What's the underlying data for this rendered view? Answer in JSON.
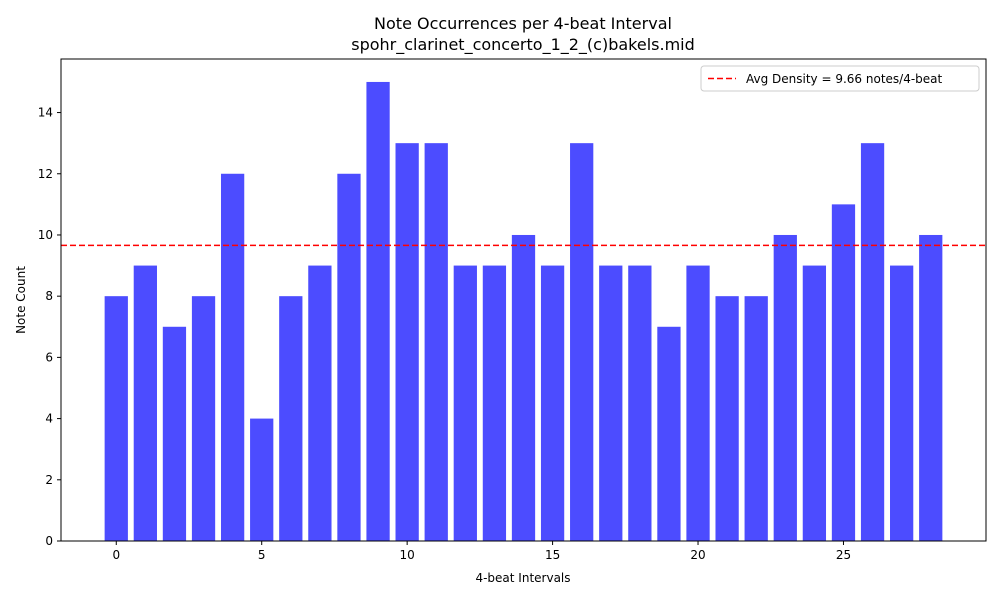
{
  "chart_data": {
    "type": "bar",
    "title": "Note Occurrences per 4-beat Interval",
    "subtitle": "spohr_clarinet_concerto_1_2_(c)bakels.mid",
    "xlabel": "4-beat Intervals",
    "ylabel": "Note Count",
    "x": [
      0,
      1,
      2,
      3,
      4,
      5,
      6,
      7,
      8,
      9,
      10,
      11,
      12,
      13,
      14,
      15,
      16,
      17,
      18,
      19,
      20,
      21,
      22,
      23,
      24,
      25,
      26,
      27,
      28
    ],
    "values": [
      8,
      9,
      7,
      8,
      12,
      4,
      8,
      9,
      12,
      15,
      13,
      13,
      9,
      9,
      10,
      9,
      13,
      9,
      9,
      7,
      9,
      8,
      8,
      10,
      9,
      11,
      13,
      9,
      10
    ],
    "xlim": [
      -1.9,
      29.9
    ],
    "ylim": [
      0,
      15.75
    ],
    "xticks": [
      0,
      5,
      10,
      15,
      20,
      25
    ],
    "yticks": [
      0,
      2,
      4,
      6,
      8,
      10,
      12,
      14
    ],
    "bar_color": "#4c4cff",
    "average": {
      "value": 9.66,
      "label": "Avg Density = 9.66 notes/4-beat",
      "color": "#ff0000"
    },
    "legend_position": "top-right",
    "grid": false
  }
}
